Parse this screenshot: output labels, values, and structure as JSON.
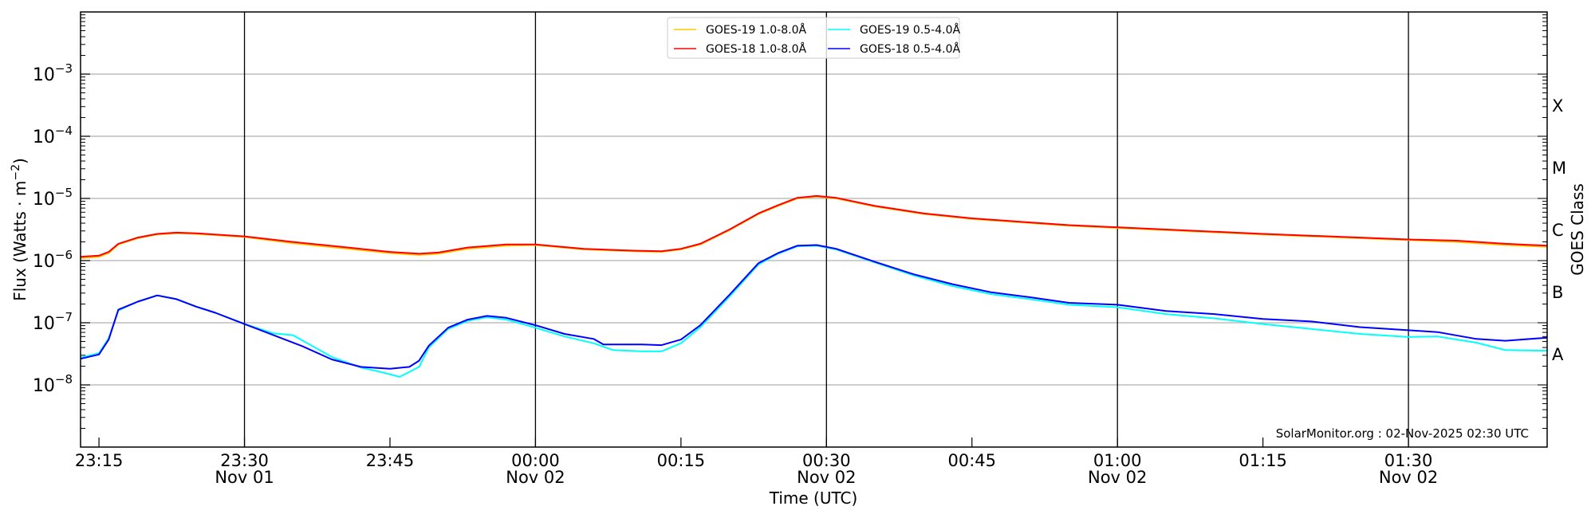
{
  "chart_data": {
    "type": "line",
    "title": "",
    "xlabel": "Time (UTC)",
    "ylabel": "Flux (Watts · m",
    "ylabel_sup": "−2",
    "ylabel_close": ")",
    "y_right_label": "GOES Class",
    "yscale": "log",
    "x_units": "minutes after 23:15 UTC, 01-Nov-2025",
    "xlim": [
      -1.9,
      149.3
    ],
    "ylim_log10": [
      -9,
      -2
    ],
    "grid": true,
    "legend_position": "top-center",
    "x_ticks": [
      {
        "value": 0,
        "label": "23:15",
        "sub": ""
      },
      {
        "value": 15,
        "label": "23:30",
        "sub": "Nov 01"
      },
      {
        "value": 30,
        "label": "23:45",
        "sub": ""
      },
      {
        "value": 45,
        "label": "00:00",
        "sub": "Nov 02"
      },
      {
        "value": 60,
        "label": "00:15",
        "sub": ""
      },
      {
        "value": 75,
        "label": "00:30",
        "sub": "Nov 02"
      },
      {
        "value": 90,
        "label": "00:45",
        "sub": ""
      },
      {
        "value": 105,
        "label": "01:00",
        "sub": "Nov 02"
      },
      {
        "value": 120,
        "label": "01:15",
        "sub": ""
      },
      {
        "value": 135,
        "label": "01:30",
        "sub": "Nov 02"
      }
    ],
    "y_ticks": [
      {
        "log10": -8,
        "base": "10",
        "exp": "−8"
      },
      {
        "log10": -7,
        "base": "10",
        "exp": "−7"
      },
      {
        "log10": -6,
        "base": "10",
        "exp": "−6"
      },
      {
        "log10": -5,
        "base": "10",
        "exp": "−5"
      },
      {
        "log10": -4,
        "base": "10",
        "exp": "−4"
      },
      {
        "log10": -3,
        "base": "10",
        "exp": "−3"
      }
    ],
    "goes_classes": [
      {
        "label": "A",
        "log10": -7.5
      },
      {
        "label": "B",
        "log10": -6.5
      },
      {
        "label": "C",
        "log10": -5.5
      },
      {
        "label": "M",
        "log10": -4.5
      },
      {
        "label": "X",
        "log10": -3.5
      }
    ],
    "watermark": "SolarMonitor.org : 02-Nov-2025 02:30 UTC",
    "series": [
      {
        "name": "GOES-19 1.0-8.0Å",
        "color": "#ffc800",
        "x": [
          -1.9,
          0,
          1,
          2,
          4,
          6,
          8,
          10,
          15,
          20,
          25,
          30,
          33,
          35,
          38,
          42,
          45,
          50,
          55,
          58,
          60,
          62,
          65,
          68,
          70,
          72,
          74,
          76,
          80,
          85,
          90,
          100,
          110,
          120,
          130,
          135,
          140,
          145,
          149.3
        ],
        "log10_flux": [
          -5.96,
          -5.94,
          -5.88,
          -5.74,
          -5.64,
          -5.58,
          -5.56,
          -5.57,
          -5.62,
          -5.72,
          -5.8,
          -5.88,
          -5.91,
          -5.89,
          -5.81,
          -5.76,
          -5.75,
          -5.82,
          -5.85,
          -5.86,
          -5.82,
          -5.74,
          -5.51,
          -5.25,
          -5.12,
          -5.0,
          -4.97,
          -5.0,
          -5.13,
          -5.25,
          -5.33,
          -5.44,
          -5.51,
          -5.58,
          -5.64,
          -5.67,
          -5.7,
          -5.75,
          -5.78
        ]
      },
      {
        "name": "GOES-18 1.0-8.0Å",
        "color": "#ff0000",
        "x": [
          -1.9,
          0,
          1,
          2,
          4,
          6,
          8,
          10,
          15,
          20,
          25,
          30,
          33,
          35,
          38,
          42,
          45,
          50,
          55,
          58,
          60,
          62,
          65,
          68,
          70,
          72,
          74,
          76,
          80,
          85,
          90,
          100,
          110,
          120,
          130,
          135,
          140,
          145,
          149.3
        ],
        "log10_flux": [
          -5.94,
          -5.92,
          -5.86,
          -5.73,
          -5.63,
          -5.57,
          -5.55,
          -5.56,
          -5.61,
          -5.7,
          -5.78,
          -5.86,
          -5.89,
          -5.87,
          -5.79,
          -5.74,
          -5.74,
          -5.81,
          -5.84,
          -5.85,
          -5.81,
          -5.73,
          -5.5,
          -5.24,
          -5.11,
          -4.99,
          -4.96,
          -4.99,
          -5.12,
          -5.24,
          -5.32,
          -5.43,
          -5.5,
          -5.57,
          -5.63,
          -5.66,
          -5.68,
          -5.73,
          -5.76
        ]
      },
      {
        "name": "GOES-19 0.5-4.0Å",
        "color": "#00ffff",
        "x": [
          -1.9,
          0,
          1,
          2,
          4,
          6,
          8,
          10,
          12,
          15,
          18,
          20,
          24,
          27,
          29,
          31,
          33,
          34,
          36,
          38,
          40,
          42,
          45,
          48,
          51,
          53,
          56,
          58,
          60,
          62,
          65,
          68,
          70,
          72,
          74,
          76,
          80,
          84,
          88,
          92,
          96,
          100,
          105,
          110,
          115,
          120,
          125,
          130,
          135,
          138,
          142,
          145,
          149.3
        ],
        "log10_flux": [
          -7.56,
          -7.49,
          -7.25,
          -6.8,
          -6.66,
          -6.56,
          -6.62,
          -6.74,
          -6.84,
          -7.02,
          -7.17,
          -7.2,
          -7.55,
          -7.72,
          -7.79,
          -7.87,
          -7.71,
          -7.4,
          -7.1,
          -6.97,
          -6.91,
          -6.95,
          -7.08,
          -7.22,
          -7.33,
          -7.44,
          -7.46,
          -7.46,
          -7.33,
          -7.07,
          -6.58,
          -6.06,
          -5.89,
          -5.77,
          -5.76,
          -5.82,
          -6.03,
          -6.24,
          -6.41,
          -6.54,
          -6.62,
          -6.71,
          -6.75,
          -6.86,
          -6.93,
          -7.02,
          -7.1,
          -7.18,
          -7.23,
          -7.22,
          -7.32,
          -7.44,
          -7.45
        ]
      },
      {
        "name": "GOES-18 0.5-4.0Å",
        "color": "#0000ff",
        "x": [
          -1.9,
          0,
          1,
          2,
          4,
          6,
          8,
          10,
          12,
          15,
          18,
          21,
          24,
          27,
          30,
          32,
          33,
          34,
          36,
          38,
          40,
          42,
          45,
          48,
          51,
          52,
          56,
          58,
          60,
          62,
          65,
          68,
          70,
          72,
          74,
          76,
          80,
          84,
          88,
          92,
          96,
          100,
          105,
          110,
          115,
          120,
          125,
          130,
          135,
          138,
          142,
          145,
          149.3
        ],
        "log10_flux": [
          -7.58,
          -7.51,
          -7.27,
          -6.79,
          -6.66,
          -6.56,
          -6.62,
          -6.74,
          -6.84,
          -7.02,
          -7.2,
          -7.38,
          -7.59,
          -7.71,
          -7.74,
          -7.71,
          -7.61,
          -7.37,
          -7.08,
          -6.95,
          -6.89,
          -6.92,
          -7.04,
          -7.18,
          -7.26,
          -7.35,
          -7.35,
          -7.36,
          -7.27,
          -7.04,
          -6.55,
          -6.04,
          -5.88,
          -5.76,
          -5.75,
          -5.81,
          -6.02,
          -6.22,
          -6.38,
          -6.51,
          -6.59,
          -6.68,
          -6.71,
          -6.81,
          -6.86,
          -6.94,
          -6.98,
          -7.07,
          -7.12,
          -7.15,
          -7.26,
          -7.29,
          -7.24
        ]
      }
    ],
    "legend": [
      {
        "label": "GOES-19 1.0-8.0Å",
        "color": "#ffc800"
      },
      {
        "label": "GOES-18 1.0-8.0Å",
        "color": "#ff0000"
      },
      {
        "label": "GOES-19 0.5-4.0Å",
        "color": "#00ffff"
      },
      {
        "label": "GOES-18 0.5-4.0Å",
        "color": "#0000ff"
      }
    ]
  }
}
